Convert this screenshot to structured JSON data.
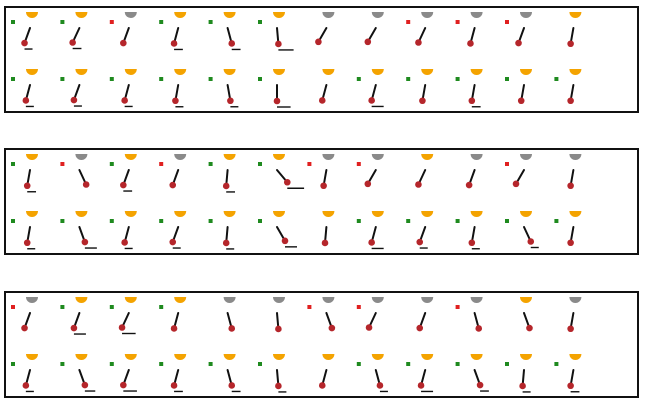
{
  "colors": {
    "border": "#111111",
    "bob": "#b5262b",
    "rod": "#111111",
    "goal_active": "#f4a300",
    "goal_inactive": "#8a8a8a",
    "marker_green": "#1f8a1f",
    "marker_red": "#e02020",
    "base_line": "#111111"
  },
  "panels": [
    {
      "rows": [
        [
          {
            "goal": "active",
            "marker": "green",
            "angle": -20,
            "base": 0.5
          },
          {
            "goal": "active",
            "marker": "green",
            "angle": -25,
            "base": 0.6
          },
          {
            "goal": "inactive",
            "marker": "red",
            "angle": -20,
            "base": 0
          },
          {
            "goal": "active",
            "marker": "green",
            "angle": -15,
            "base": 0.6
          },
          {
            "goal": "active",
            "marker": "green",
            "angle": 15,
            "base": 0.6
          },
          {
            "goal": "active",
            "marker": "green",
            "angle": 5,
            "base": 1.4
          },
          {
            "goal": "inactive",
            "marker": "none",
            "angle": -30,
            "base": 0
          },
          {
            "goal": "inactive",
            "marker": "none",
            "angle": -30,
            "base": 0
          },
          {
            "goal": "inactive",
            "marker": "red",
            "angle": -25,
            "base": 0
          },
          {
            "goal": "inactive",
            "marker": "red",
            "angle": -15,
            "base": 0
          },
          {
            "goal": "inactive",
            "marker": "red",
            "angle": -20,
            "base": 0
          },
          {
            "goal": "active",
            "marker": "none",
            "angle": -10,
            "base": 0
          }
        ],
        [
          {
            "goal": "active",
            "marker": "green",
            "angle": -15,
            "base": 0.5
          },
          {
            "goal": "active",
            "marker": "green",
            "angle": -20,
            "base": 0.5
          },
          {
            "goal": "active",
            "marker": "green",
            "angle": -15,
            "base": 0.5
          },
          {
            "goal": "active",
            "marker": "green",
            "angle": -10,
            "base": 0.5
          },
          {
            "goal": "active",
            "marker": "green",
            "angle": 10,
            "base": 0.5
          },
          {
            "goal": "active",
            "marker": "green",
            "angle": 0,
            "base": 1.2
          },
          {
            "goal": "active",
            "marker": "none",
            "angle": -15,
            "base": 0
          },
          {
            "goal": "active",
            "marker": "green",
            "angle": -15,
            "base": 1.0
          },
          {
            "goal": "active",
            "marker": "green",
            "angle": -10,
            "base": 0
          },
          {
            "goal": "active",
            "marker": "green",
            "angle": -10,
            "base": 0.6
          },
          {
            "goal": "active",
            "marker": "green",
            "angle": -10,
            "base": 0
          },
          {
            "goal": "active",
            "marker": "green",
            "angle": -10,
            "base": 0
          }
        ]
      ]
    },
    {
      "rows": [
        [
          {
            "goal": "active",
            "marker": "green",
            "angle": -10,
            "base": 0.6
          },
          {
            "goal": "inactive",
            "marker": "red",
            "angle": 25,
            "base": 0
          },
          {
            "goal": "active",
            "marker": "green",
            "angle": -20,
            "base": 0.6
          },
          {
            "goal": "inactive",
            "marker": "red",
            "angle": -20,
            "base": 0
          },
          {
            "goal": "active",
            "marker": "green",
            "angle": -5,
            "base": 0.6
          },
          {
            "goal": "active",
            "marker": "green",
            "angle": 40,
            "base": 1.6
          },
          {
            "goal": "inactive",
            "marker": "red",
            "angle": -10,
            "base": 0
          },
          {
            "goal": "inactive",
            "marker": "red",
            "angle": -30,
            "base": 0
          },
          {
            "goal": "active",
            "marker": "none",
            "angle": -25,
            "base": 0
          },
          {
            "goal": "inactive",
            "marker": "none",
            "angle": -20,
            "base": 0
          },
          {
            "goal": "inactive",
            "marker": "red",
            "angle": -30,
            "base": 0
          },
          {
            "goal": "inactive",
            "marker": "none",
            "angle": -10,
            "base": 0
          }
        ],
        [
          {
            "goal": "active",
            "marker": "green",
            "angle": -10,
            "base": 0.5
          },
          {
            "goal": "active",
            "marker": "green",
            "angle": 20,
            "base": 1.0
          },
          {
            "goal": "active",
            "marker": "green",
            "angle": -15,
            "base": 0.5
          },
          {
            "goal": "active",
            "marker": "green",
            "angle": -20,
            "base": 0.5
          },
          {
            "goal": "active",
            "marker": "green",
            "angle": -5,
            "base": 0.5
          },
          {
            "goal": "active",
            "marker": "green",
            "angle": 30,
            "base": 1.0
          },
          {
            "goal": "active",
            "marker": "none",
            "angle": -5,
            "base": 0
          },
          {
            "goal": "active",
            "marker": "green",
            "angle": -15,
            "base": 1.0
          },
          {
            "goal": "active",
            "marker": "green",
            "angle": -20,
            "base": 0.5
          },
          {
            "goal": "active",
            "marker": "green",
            "angle": -10,
            "base": 0.5
          },
          {
            "goal": "active",
            "marker": "green",
            "angle": 25,
            "base": 0.5
          },
          {
            "goal": "active",
            "marker": "green",
            "angle": -10,
            "base": 0
          }
        ]
      ]
    },
    {
      "rows": [
        [
          {
            "goal": "inactive",
            "marker": "red",
            "angle": -20,
            "base": 0
          },
          {
            "goal": "active",
            "marker": "green",
            "angle": -20,
            "base": 1.0
          },
          {
            "goal": "active",
            "marker": "green",
            "angle": -25,
            "base": 1.2
          },
          {
            "goal": "active",
            "marker": "green",
            "angle": -15,
            "base": 0
          },
          {
            "goal": "inactive",
            "marker": "none",
            "angle": 15,
            "base": 0
          },
          {
            "goal": "inactive",
            "marker": "none",
            "angle": 5,
            "base": 0
          },
          {
            "goal": "inactive",
            "marker": "red",
            "angle": 20,
            "base": 0
          },
          {
            "goal": "inactive",
            "marker": "red",
            "angle": -25,
            "base": 0
          },
          {
            "goal": "inactive",
            "marker": "none",
            "angle": -20,
            "base": 0
          },
          {
            "goal": "inactive",
            "marker": "red",
            "angle": 15,
            "base": 0
          },
          {
            "goal": "active",
            "marker": "none",
            "angle": 20,
            "base": 0
          },
          {
            "goal": "inactive",
            "marker": "none",
            "angle": -10,
            "base": 0
          }
        ],
        [
          {
            "goal": "active",
            "marker": "green",
            "angle": -15,
            "base": 0.5
          },
          {
            "goal": "active",
            "marker": "green",
            "angle": 20,
            "base": 0.8
          },
          {
            "goal": "active",
            "marker": "green",
            "angle": -20,
            "base": 1.2
          },
          {
            "goal": "active",
            "marker": "green",
            "angle": -15,
            "base": 0.6
          },
          {
            "goal": "active",
            "marker": "green",
            "angle": 15,
            "base": 0.6
          },
          {
            "goal": "active",
            "marker": "green",
            "angle": 5,
            "base": 0.5
          },
          {
            "goal": "active",
            "marker": "none",
            "angle": -15,
            "base": 0
          },
          {
            "goal": "active",
            "marker": "green",
            "angle": 15,
            "base": 0.5
          },
          {
            "goal": "active",
            "marker": "green",
            "angle": -15,
            "base": 1.0
          },
          {
            "goal": "active",
            "marker": "green",
            "angle": 20,
            "base": 0.6
          },
          {
            "goal": "active",
            "marker": "green",
            "angle": -5,
            "base": 0.5
          },
          {
            "goal": "active",
            "marker": "green",
            "angle": -10,
            "base": 0.6
          }
        ]
      ]
    }
  ]
}
